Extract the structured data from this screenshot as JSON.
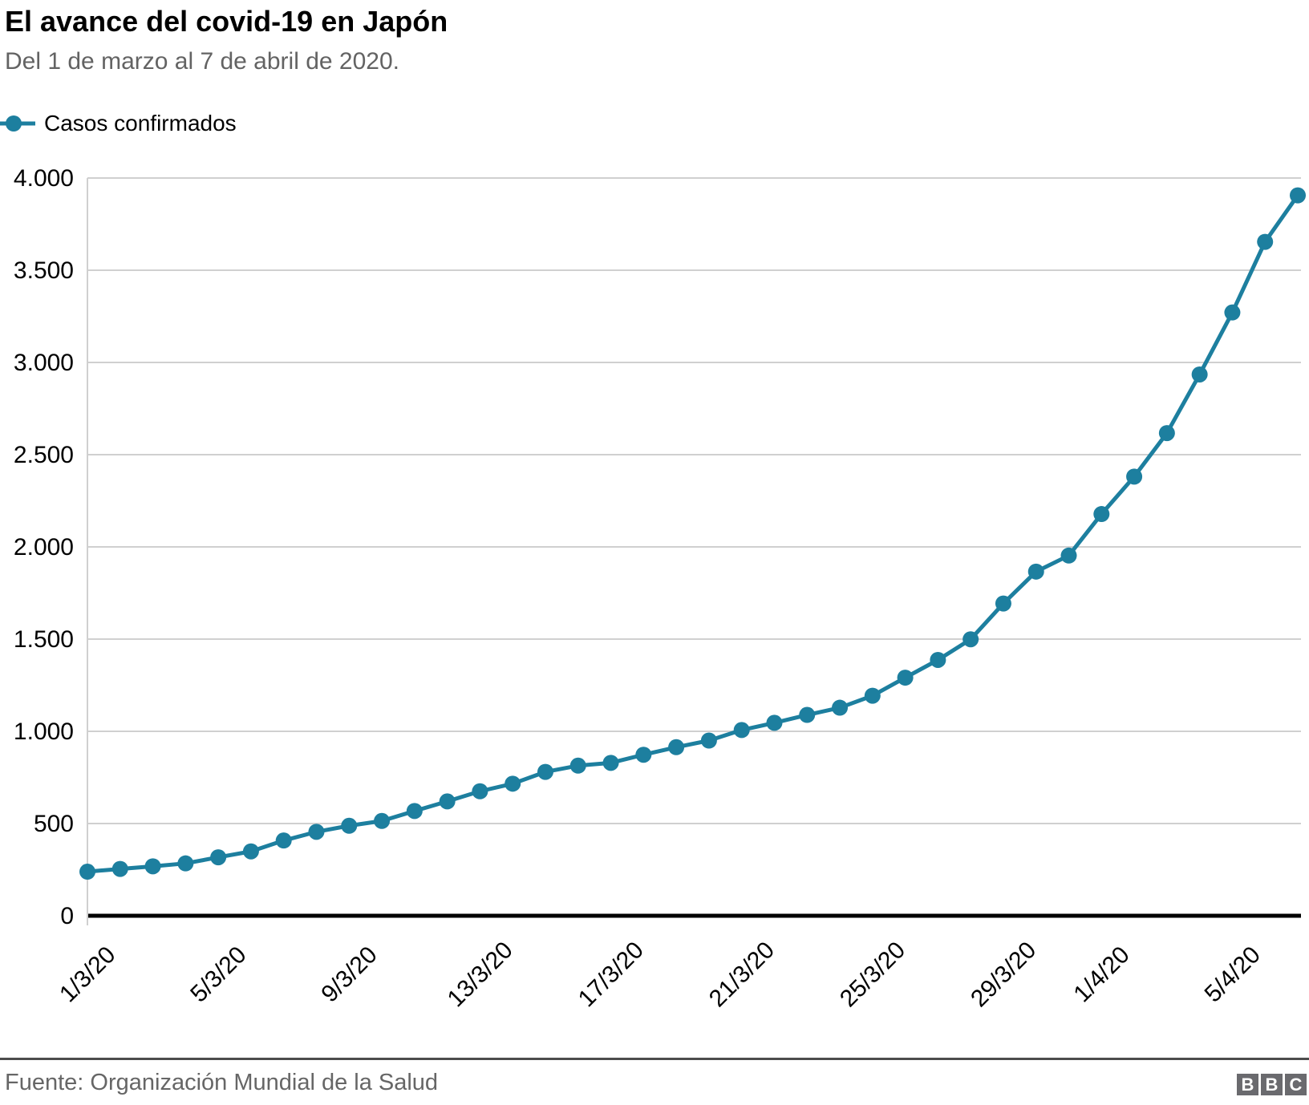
{
  "header": {
    "title": "El avance del covid-19 en Japón",
    "subtitle": "Del 1 de marzo al 7 de abril de 2020."
  },
  "legend": {
    "label": "Casos confirmados",
    "marker_color": "#1d7f9f"
  },
  "chart_data": {
    "type": "line",
    "title": "El avance del covid-19 en Japón",
    "subtitle": "Del 1 de marzo al 7 de abril de 2020.",
    "grid": "horizontal",
    "legend_position": "top-left",
    "ylim": [
      0,
      4000
    ],
    "x": [
      "1/3/20",
      "2/3/20",
      "3/3/20",
      "4/3/20",
      "5/3/20",
      "6/3/20",
      "7/3/20",
      "8/3/20",
      "9/3/20",
      "10/3/20",
      "11/3/20",
      "12/3/20",
      "13/3/20",
      "14/3/20",
      "15/3/20",
      "16/3/20",
      "17/3/20",
      "18/3/20",
      "19/3/20",
      "20/3/20",
      "21/3/20",
      "22/3/20",
      "23/3/20",
      "24/3/20",
      "25/3/20",
      "26/3/20",
      "27/3/20",
      "28/3/20",
      "29/3/20",
      "30/3/20",
      "31/3/20",
      "1/4/20",
      "2/4/20",
      "3/4/20",
      "4/4/20",
      "5/4/20",
      "6/4/20",
      "7/4/20"
    ],
    "series": [
      {
        "name": "Casos confirmados",
        "color": "#1d7f9f",
        "values": [
          239,
          254,
          268,
          284,
          317,
          349,
          408,
          455,
          488,
          514,
          568,
          620,
          675,
          716,
          780,
          814,
          829,
          873,
          914,
          950,
          1007,
          1046,
          1089,
          1128,
          1193,
          1291,
          1387,
          1499,
          1693,
          1866,
          1953,
          2178,
          2381,
          2617,
          2935,
          3271,
          3654,
          3906
        ]
      }
    ],
    "x_ticks": [
      {
        "index": 0,
        "label": "1/3/20"
      },
      {
        "index": 4,
        "label": "5/3/20"
      },
      {
        "index": 8,
        "label": "9/3/20"
      },
      {
        "index": 12,
        "label": "13/3/20"
      },
      {
        "index": 16,
        "label": "17/3/20"
      },
      {
        "index": 20,
        "label": "21/3/20"
      },
      {
        "index": 24,
        "label": "25/3/20"
      },
      {
        "index": 28,
        "label": "29/3/20"
      },
      {
        "index": 31,
        "label": "1/4/20"
      },
      {
        "index": 35,
        "label": "5/4/20"
      }
    ],
    "y_ticks": [
      {
        "value": 0,
        "label": "0"
      },
      {
        "value": 500,
        "label": "500"
      },
      {
        "value": 1000,
        "label": "1.000"
      },
      {
        "value": 1500,
        "label": "1.500"
      },
      {
        "value": 2000,
        "label": "2.000"
      },
      {
        "value": 2500,
        "label": "2.500"
      },
      {
        "value": 3000,
        "label": "3.000"
      },
      {
        "value": 3500,
        "label": "3.500"
      },
      {
        "value": 4000,
        "label": "4.000"
      }
    ]
  },
  "footer": {
    "source": "Fuente: Organización Mundial de la Salud",
    "logo_letters": [
      "B",
      "B",
      "C"
    ]
  }
}
